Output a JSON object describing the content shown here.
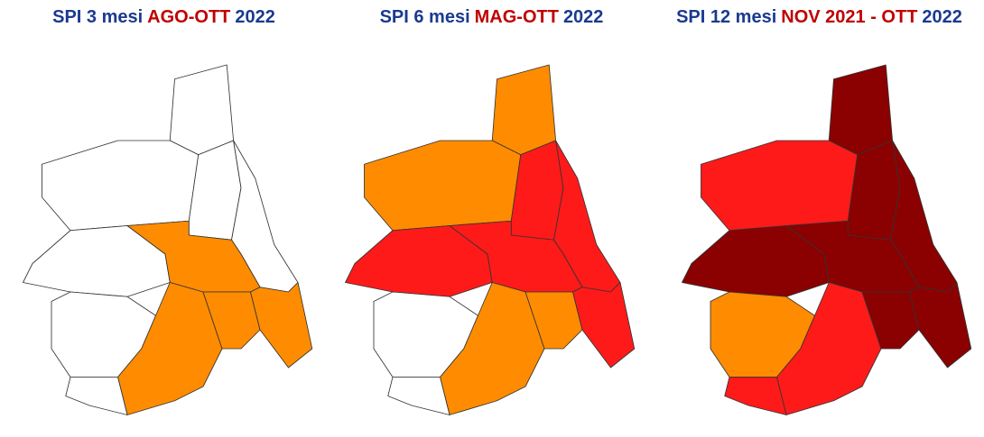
{
  "panels": [
    {
      "title": {
        "prefix": "SPI 3 mesi",
        "period": "AGO-OTT",
        "year": "2022"
      }
    },
    {
      "title": {
        "prefix": "SPI 6 mesi",
        "period": "MAG-OTT",
        "year": "2022"
      }
    },
    {
      "title": {
        "prefix": "SPI 12 mesi",
        "period": "NOV 2021 - OTT",
        "year": "2022"
      }
    }
  ]
}
